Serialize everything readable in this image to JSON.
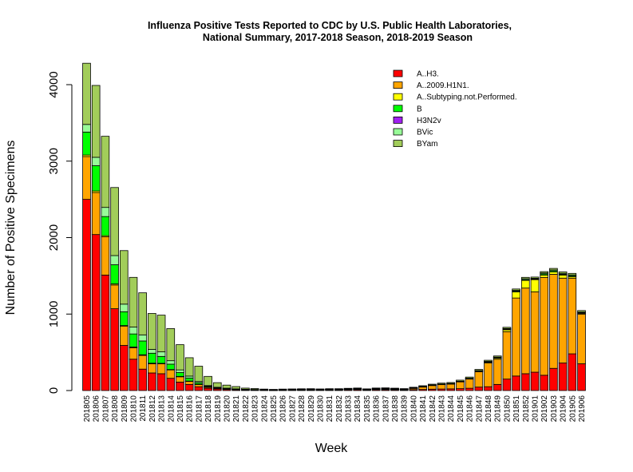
{
  "chart_data": {
    "type": "bar",
    "stacked": true,
    "title_line1": "Influenza Positive Tests Reported to CDC by U.S. Public Health Laboratories,",
    "title_line2": "National Summary, 2017-2018 Season, 2018-2019 Season",
    "xlabel": "Week",
    "ylabel": "Number of Positive Specimens",
    "ylim": [
      0,
      4300
    ],
    "yticks": [
      0,
      1000,
      2000,
      3000,
      4000
    ],
    "legend_position": "top-right",
    "categories": [
      "201805",
      "201806",
      "201807",
      "201808",
      "201809",
      "201810",
      "201811",
      "201812",
      "201813",
      "201814",
      "201815",
      "201816",
      "201817",
      "201818",
      "201819",
      "201820",
      "201821",
      "201822",
      "201823",
      "201824",
      "201825",
      "201826",
      "201827",
      "201828",
      "201829",
      "201830",
      "201831",
      "201832",
      "201833",
      "201834",
      "201835",
      "201836",
      "201837",
      "201838",
      "201839",
      "201840",
      "201841",
      "201842",
      "201843",
      "201844",
      "201845",
      "201846",
      "201847",
      "201848",
      "201849",
      "201850",
      "201851",
      "201852",
      "201901",
      "201902",
      "201903",
      "201904",
      "201905",
      "201906"
    ],
    "series": [
      {
        "name": "A..H3.",
        "color": "#ff0000",
        "values": [
          2500,
          2040,
          1510,
          1070,
          590,
          410,
          280,
          230,
          220,
          160,
          110,
          80,
          50,
          30,
          20,
          14,
          10,
          8,
          6,
          5,
          4,
          5,
          6,
          8,
          8,
          6,
          8,
          8,
          10,
          12,
          8,
          12,
          12,
          10,
          8,
          12,
          14,
          18,
          20,
          22,
          25,
          30,
          45,
          50,
          80,
          150,
          190,
          220,
          240,
          200,
          290,
          360,
          480,
          350
        ]
      },
      {
        "name": "A..2009.H1N1.",
        "color": "#ffa500",
        "values": [
          560,
          550,
          500,
          310,
          250,
          150,
          180,
          120,
          130,
          110,
          70,
          40,
          30,
          15,
          10,
          8,
          6,
          4,
          3,
          3,
          2,
          3,
          4,
          4,
          5,
          4,
          5,
          5,
          8,
          10,
          5,
          10,
          12,
          10,
          8,
          20,
          35,
          50,
          60,
          65,
          90,
          120,
          200,
          310,
          330,
          620,
          1020,
          1120,
          1050,
          1280,
          1230,
          1110,
          990,
          650
        ]
      },
      {
        "name": "A..Subtyping.not.Performed.",
        "color": "#ffff00",
        "values": [
          20,
          20,
          15,
          15,
          10,
          10,
          8,
          8,
          6,
          5,
          5,
          4,
          3,
          2,
          2,
          2,
          1,
          1,
          1,
          1,
          1,
          1,
          1,
          1,
          1,
          1,
          1,
          1,
          1,
          1,
          1,
          1,
          1,
          1,
          1,
          1,
          1,
          2,
          2,
          2,
          3,
          5,
          8,
          10,
          15,
          25,
          80,
          100,
          160,
          30,
          30,
          40,
          20,
          10
        ]
      },
      {
        "name": "B",
        "color": "#00ff00",
        "values": [
          300,
          330,
          250,
          250,
          180,
          170,
          180,
          130,
          90,
          70,
          50,
          40,
          20,
          10,
          6,
          4,
          3,
          2,
          2,
          1,
          1,
          1,
          1,
          1,
          1,
          1,
          1,
          1,
          1,
          1,
          1,
          1,
          1,
          1,
          1,
          1,
          1,
          1,
          1,
          1,
          1,
          2,
          3,
          5,
          6,
          8,
          10,
          10,
          8,
          15,
          15,
          10,
          12,
          8
        ]
      },
      {
        "name": "H3N2v",
        "color": "#a020f0",
        "values": [
          0,
          0,
          0,
          0,
          0,
          0,
          0,
          0,
          0,
          0,
          0,
          0,
          0,
          0,
          0,
          0,
          0,
          0,
          0,
          0,
          0,
          0,
          0,
          0,
          0,
          0,
          0,
          0,
          0,
          0,
          0,
          0,
          0,
          0,
          0,
          0,
          0,
          0,
          0,
          0,
          0,
          0,
          0,
          0,
          0,
          0,
          0,
          0,
          0,
          0,
          0,
          0,
          0,
          0
        ]
      },
      {
        "name": "BVic",
        "color": "#98fb98",
        "values": [
          100,
          110,
          120,
          120,
          100,
          90,
          80,
          50,
          60,
          45,
          35,
          25,
          15,
          8,
          5,
          3,
          2,
          2,
          2,
          1,
          1,
          1,
          1,
          1,
          1,
          1,
          1,
          1,
          1,
          1,
          1,
          1,
          1,
          1,
          1,
          1,
          2,
          2,
          2,
          3,
          3,
          4,
          5,
          6,
          6,
          8,
          10,
          12,
          10,
          12,
          12,
          12,
          10,
          8
        ]
      },
      {
        "name": "BYam",
        "color": "#a2cd5a",
        "values": [
          800,
          940,
          930,
          890,
          700,
          650,
          550,
          470,
          480,
          420,
          330,
          240,
          200,
          120,
          60,
          40,
          30,
          15,
          12,
          8,
          6,
          8,
          8,
          8,
          8,
          8,
          8,
          8,
          8,
          8,
          6,
          8,
          8,
          8,
          6,
          8,
          10,
          10,
          12,
          12,
          14,
          15,
          15,
          15,
          15,
          16,
          18,
          18,
          16,
          18,
          20,
          20,
          20,
          20
        ]
      }
    ]
  }
}
